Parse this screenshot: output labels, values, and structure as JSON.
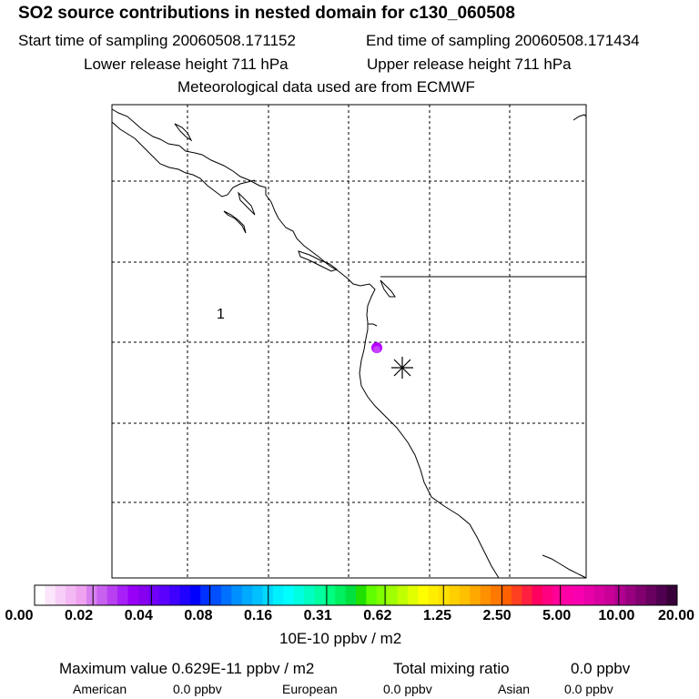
{
  "header": {
    "title": "SO2 source contributions in nested domain for c130_060508",
    "start_label": "Start time of sampling 20060508.171152",
    "end_label": "End time of sampling 20060508.171434",
    "lower_label": "Lower release height  711 hPa",
    "upper_label": "Upper release height  711 hPa",
    "met_label": "Meteorological data used are from ECMWF"
  },
  "map": {
    "region_label": "1",
    "plume_color": "#b400ff",
    "plume_value_range": "0.04-0.08",
    "source_marker": "asterisk-icon"
  },
  "colorbar": {
    "ticks": [
      "0.00",
      "0.02",
      "0.04",
      "0.08",
      "0.16",
      "0.31",
      "0.62",
      "1.25",
      "2.50",
      "5.00",
      "10.00",
      "20.00"
    ],
    "unit": "10E-10 ppbv / m2",
    "colors": [
      "#ffffff",
      "#fbe6fb",
      "#f7cef7",
      "#f3b8f3",
      "#eea2f0",
      "#d880f0",
      "#c860f0",
      "#b840f0",
      "#a820f8",
      "#9800f8",
      "#8800f0",
      "#7000f8",
      "#5a00fc",
      "#4000ff",
      "#2000ff",
      "#0000ff",
      "#0030ff",
      "#0050ff",
      "#0070ff",
      "#0090ff",
      "#00aaff",
      "#00c0ff",
      "#00d8ff",
      "#00f0ff",
      "#00ffff",
      "#00ffe0",
      "#00ffc0",
      "#00ffa0",
      "#00ff80",
      "#00f060",
      "#00e040",
      "#20e000",
      "#60ff00",
      "#80ff00",
      "#a0ff00",
      "#c0ff00",
      "#e0ff00",
      "#ffff00",
      "#ffee00",
      "#ffe000",
      "#ffd000",
      "#ffc000",
      "#ffa800",
      "#ff9000",
      "#ff7800",
      "#ff6000",
      "#ff4020",
      "#ff2040",
      "#ff0060",
      "#ff0080",
      "#ff0098",
      "#ff00a8",
      "#f800b0",
      "#e800a8",
      "#d800a0",
      "#c80098",
      "#b00090",
      "#980080",
      "#800070",
      "#680060",
      "#500050",
      "#380038"
    ]
  },
  "footer": {
    "max_label": "Maximum value  0.629E-11 ppbv / m2",
    "total_label": "Total mixing ratio",
    "total_value": "0.0 ppbv",
    "american_label": "American",
    "american_value": "0.0 ppbv",
    "european_label": "European",
    "european_value": "0.0 ppbv",
    "asian_label": "Asian",
    "asian_value": "0.0 ppbv"
  }
}
